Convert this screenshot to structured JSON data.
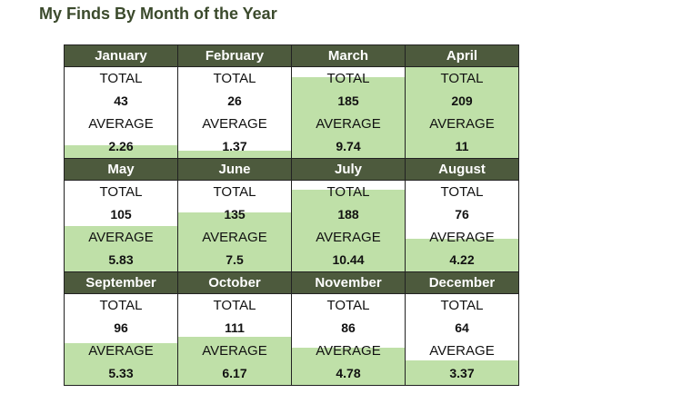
{
  "title": "My Finds By Month of the Year",
  "labels": {
    "total": "TOTAL",
    "average": "AVERAGE"
  },
  "colors": {
    "header_bg": "#4d5a3d",
    "fill": "#bfe0a8",
    "title": "#3b4a2c"
  },
  "months": [
    {
      "name": "January",
      "total": "43",
      "average": "2.26",
      "fill_fraction": 0.14
    },
    {
      "name": "February",
      "total": "26",
      "average": "1.37",
      "fill_fraction": 0.08
    },
    {
      "name": "March",
      "total": "185",
      "average": "9.74",
      "fill_fraction": 0.89
    },
    {
      "name": "April",
      "total": "209",
      "average": "11",
      "fill_fraction": 1.0
    },
    {
      "name": "May",
      "total": "105",
      "average": "5.83",
      "fill_fraction": 0.5
    },
    {
      "name": "June",
      "total": "135",
      "average": "7.5",
      "fill_fraction": 0.65
    },
    {
      "name": "July",
      "total": "188",
      "average": "10.44",
      "fill_fraction": 0.9
    },
    {
      "name": "August",
      "total": "76",
      "average": "4.22",
      "fill_fraction": 0.36
    },
    {
      "name": "September",
      "total": "96",
      "average": "5.33",
      "fill_fraction": 0.46
    },
    {
      "name": "October",
      "total": "111",
      "average": "6.17",
      "fill_fraction": 0.53
    },
    {
      "name": "November",
      "total": "86",
      "average": "4.78",
      "fill_fraction": 0.41
    },
    {
      "name": "December",
      "total": "64",
      "average": "3.37",
      "fill_fraction": 0.27
    }
  ]
}
